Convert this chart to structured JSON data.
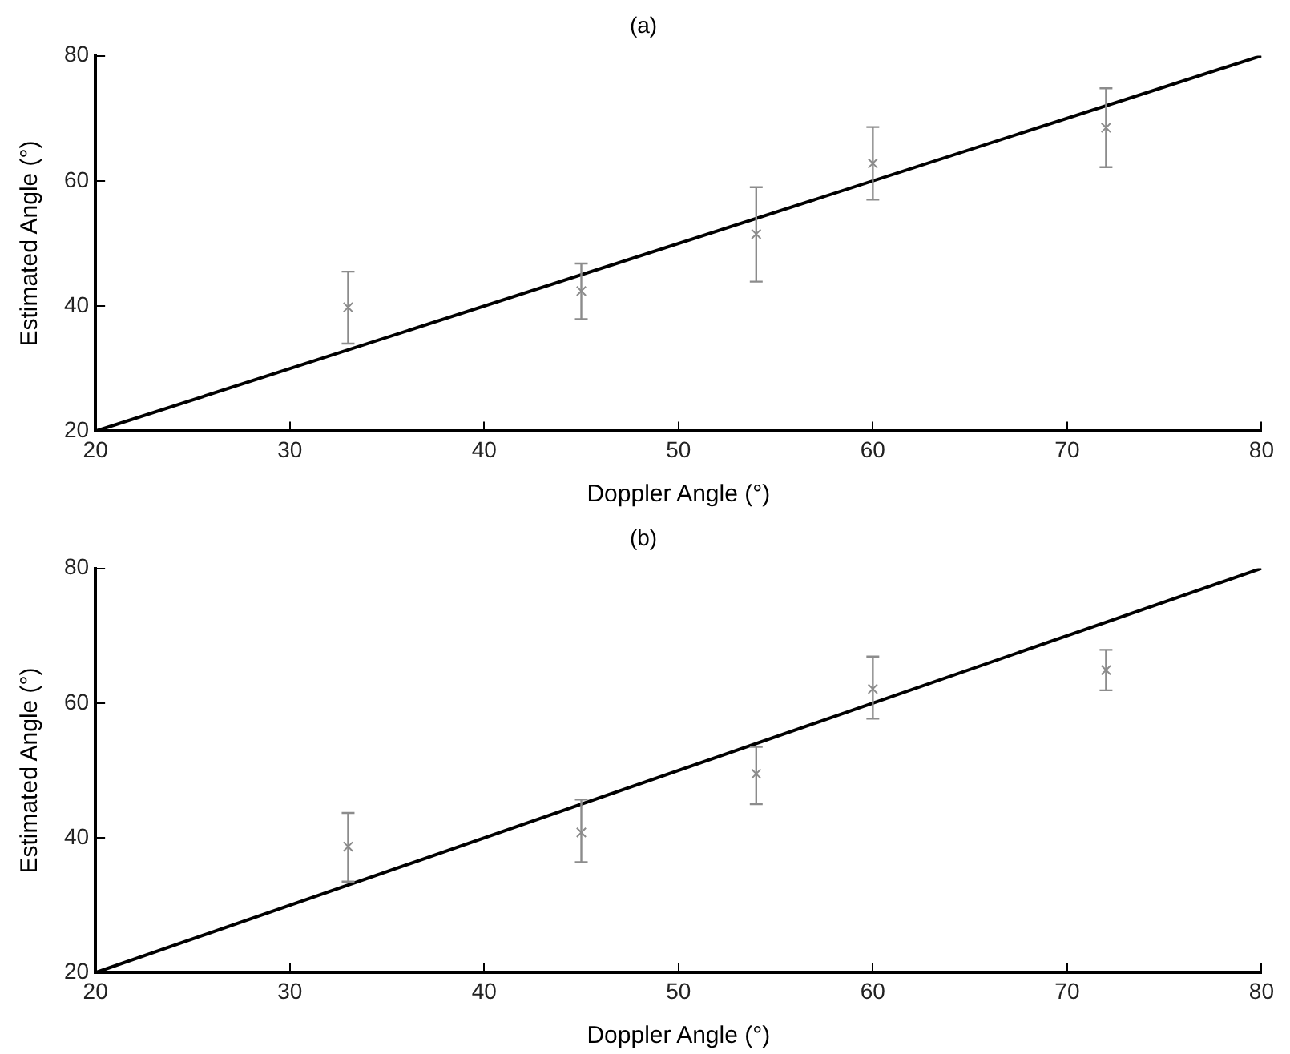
{
  "chart_data": [
    {
      "type": "scatter",
      "title": "(a)",
      "xlabel": "Doppler Angle (°)",
      "ylabel": "Estimated Angle (°)",
      "xlim": [
        20,
        80
      ],
      "xticks": [
        20,
        30,
        40,
        50,
        60,
        70,
        80
      ],
      "ylim": [
        20,
        80
      ],
      "yticks": [
        20,
        40,
        60,
        80
      ],
      "grid": false,
      "legend": false,
      "series": [
        {
          "color": "#8c8c8c",
          "marker": "cross",
          "x": [
            33,
            45,
            54,
            60,
            72
          ],
          "values": [
            39.8,
            42.4,
            51.5,
            62.8,
            68.5
          ],
          "errors": [
            [
              34,
              45.5
            ],
            [
              37.9,
              46.8
            ],
            [
              43.9,
              59
            ],
            [
              57,
              68.6
            ],
            [
              62.2,
              74.8
            ]
          ]
        },
        {
          "type": "line",
          "color": "#000000",
          "marker": "none",
          "x": [
            20,
            80
          ],
          "values": [
            20,
            80
          ]
        }
      ]
    },
    {
      "type": "scatter",
      "title": "(b)",
      "xlabel": "Doppler Angle (°)",
      "ylabel": "Estimated Angle (°)",
      "xlim": [
        20,
        80
      ],
      "xticks": [
        20,
        30,
        40,
        50,
        60,
        70,
        80
      ],
      "ylim": [
        20,
        80
      ],
      "yticks": [
        20,
        40,
        60,
        80
      ],
      "grid": false,
      "legend": false,
      "series": [
        {
          "color": "#8c8c8c",
          "marker": "cross",
          "x": [
            33,
            45,
            54,
            60,
            72
          ],
          "values": [
            38.7,
            40.8,
            49.5,
            62.1,
            64.9
          ],
          "errors": [
            [
              33.5,
              43.7
            ],
            [
              36.4,
              45.7
            ],
            [
              45,
              53.5
            ],
            [
              57.7,
              66.9
            ],
            [
              61.9,
              67.9
            ]
          ]
        },
        {
          "type": "line",
          "color": "#000000",
          "marker": "none",
          "x": [
            20,
            80
          ],
          "values": [
            20,
            80
          ]
        }
      ]
    }
  ]
}
